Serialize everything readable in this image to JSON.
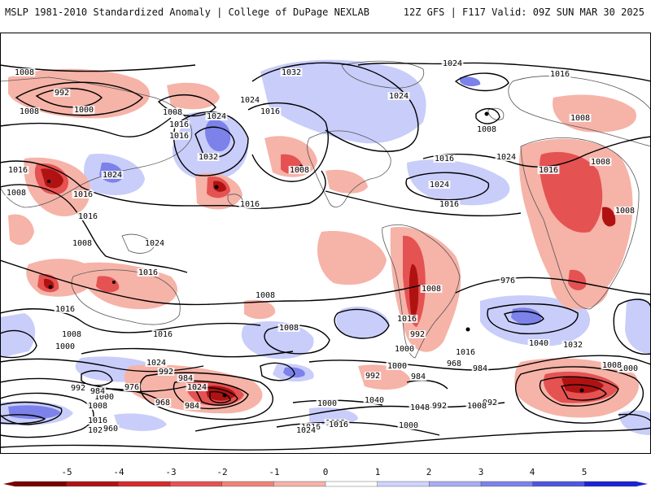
{
  "header": {
    "left": "MSLP 1981-2010 Standardized Anomaly | College of DuPage NEXLAB",
    "right": "12Z GFS | F117 Valid: 09Z SUN MAR 30 2025"
  },
  "colorbar": {
    "ticks": [
      "-5",
      "-4",
      "-3",
      "-2",
      "-1",
      "0",
      "1",
      "2",
      "3",
      "4",
      "5"
    ],
    "colors": [
      "#7a0000",
      "#b01212",
      "#d62a2a",
      "#e55252",
      "#ef8278",
      "#f6b3a8",
      "#ffffff",
      "#cfd3ff",
      "#a7acf4",
      "#7c82ea",
      "#4e56e0",
      "#1a23d6"
    ]
  },
  "contour_labels": [
    {
      "t": "1008"
    },
    {
      "t": "992"
    },
    {
      "t": "1000"
    },
    {
      "t": "1008"
    },
    {
      "t": "1008"
    },
    {
      "t": "1016"
    },
    {
      "t": "1032"
    },
    {
      "t": "1024"
    },
    {
      "t": "1024"
    },
    {
      "t": "1016"
    },
    {
      "t": "1024"
    },
    {
      "t": "1016"
    },
    {
      "t": "1032"
    },
    {
      "t": "1024"
    },
    {
      "t": "1016"
    },
    {
      "t": "1008"
    },
    {
      "t": "1016"
    },
    {
      "t": "1008"
    },
    {
      "t": "1024"
    },
    {
      "t": "1016"
    },
    {
      "t": "1016"
    },
    {
      "t": "1008"
    },
    {
      "t": "1024"
    },
    {
      "t": "1016"
    },
    {
      "t": "1008"
    },
    {
      "t": "1016"
    },
    {
      "t": "1008"
    },
    {
      "t": "1024"
    },
    {
      "t": "1016"
    },
    {
      "t": "1008"
    },
    {
      "t": "1016"
    },
    {
      "t": "1024"
    },
    {
      "t": "1008"
    },
    {
      "t": "1016"
    },
    {
      "t": "1016"
    },
    {
      "t": "1008"
    },
    {
      "t": "1016"
    },
    {
      "t": "1024"
    },
    {
      "t": "1008"
    },
    {
      "t": "1008"
    },
    {
      "t": "1000"
    },
    {
      "t": "1016"
    },
    {
      "t": "1008"
    },
    {
      "t": "1000"
    },
    {
      "t": "992"
    },
    {
      "t": "984"
    },
    {
      "t": "1016"
    },
    {
      "t": "976"
    },
    {
      "t": "968"
    },
    {
      "t": "984"
    },
    {
      "t": "1000"
    },
    {
      "t": "992"
    },
    {
      "t": "992"
    },
    {
      "t": "984"
    },
    {
      "t": "1024"
    },
    {
      "t": "1000"
    },
    {
      "t": "1048"
    },
    {
      "t": "1040"
    },
    {
      "t": "1040"
    },
    {
      "t": "1032"
    },
    {
      "t": "1008"
    },
    {
      "t": "1024"
    },
    {
      "t": "1016"
    },
    {
      "t": "1000"
    },
    {
      "t": "992"
    },
    {
      "t": "984"
    },
    {
      "t": "976"
    },
    {
      "t": "968"
    },
    {
      "t": "984"
    },
    {
      "t": "960"
    },
    {
      "t": "992"
    },
    {
      "t": "1008"
    },
    {
      "t": "1000"
    },
    {
      "t": "1016"
    },
    {
      "t": "1008"
    },
    {
      "t": "1000"
    },
    {
      "t": "992"
    },
    {
      "t": "1008"
    },
    {
      "t": "1024"
    },
    {
      "t": "1016"
    }
  ]
}
